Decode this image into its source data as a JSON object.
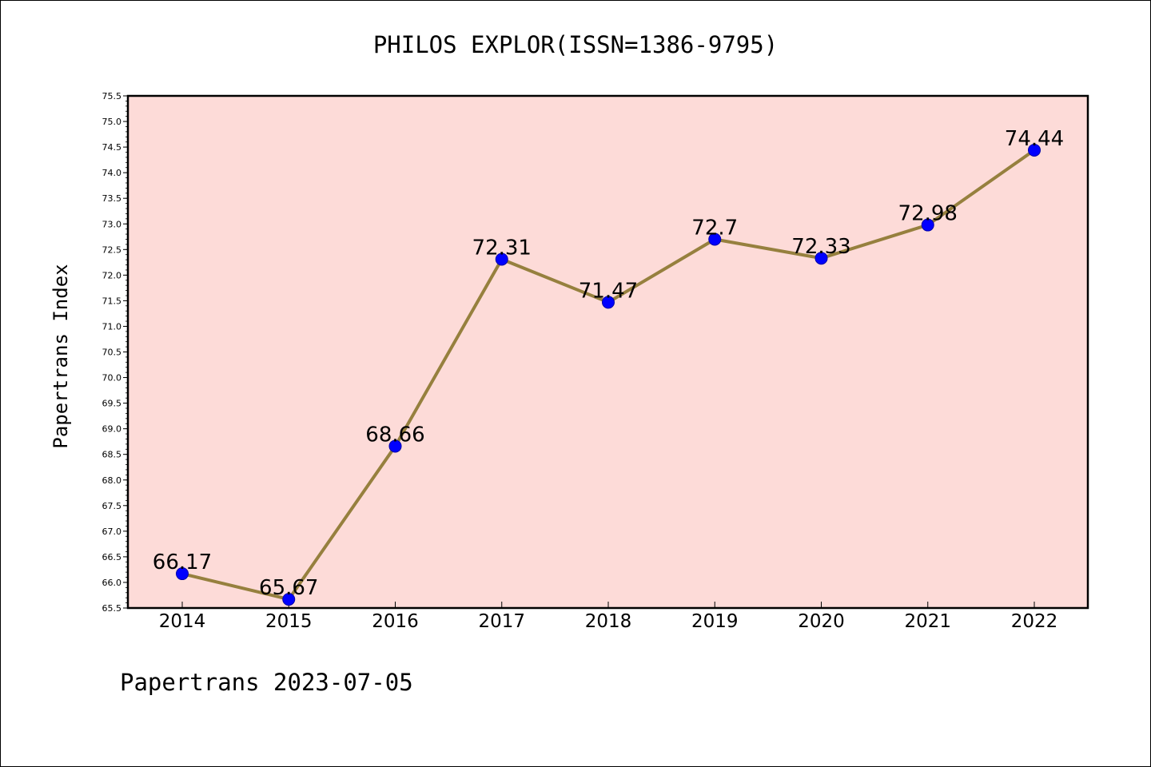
{
  "chart_data": {
    "type": "line",
    "title": "PHILOS EXPLOR(ISSN=1386-9795)",
    "ylabel": "Papertrans Index",
    "xlabel": "",
    "categories": [
      "2014",
      "2015",
      "2016",
      "2017",
      "2018",
      "2019",
      "2020",
      "2021",
      "2022"
    ],
    "series": [
      {
        "values": [
          66.17,
          65.67,
          68.66,
          72.31,
          71.47,
          72.7,
          72.33,
          72.98,
          74.44
        ],
        "labels": [
          "66.17",
          "65.67",
          "68.66",
          "72.31",
          "71.47",
          "72.7",
          "72.33",
          "72.98",
          "74.44"
        ]
      }
    ],
    "ylim": [
      65.5,
      75.5
    ],
    "yticks": [
      "65.5",
      "66.0",
      "66.5",
      "67.0",
      "67.5",
      "68.0",
      "68.5",
      "69.0",
      "69.5",
      "70.0",
      "70.5",
      "71.0",
      "71.5",
      "72.0",
      "72.5",
      "73.0",
      "73.5",
      "74.0",
      "74.5",
      "75.0",
      "75.5"
    ],
    "grid": false,
    "colors": {
      "plot_background": "#fddbd8",
      "line": "#96803e",
      "marker": "#0000ff"
    }
  },
  "footer": "Papertrans 2023-07-05"
}
